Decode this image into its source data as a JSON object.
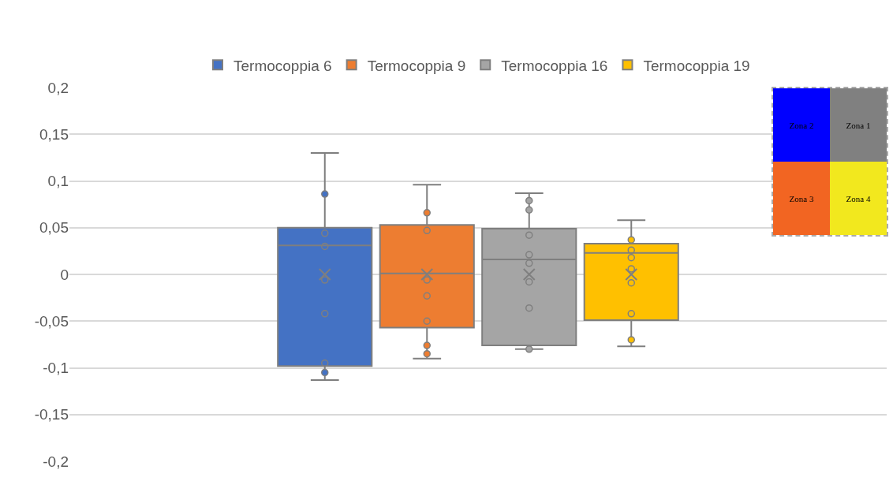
{
  "chart_data": {
    "type": "box",
    "categories": [
      null
    ],
    "series": [
      {
        "name": "Termocoppia 6",
        "color": "#4472c4",
        "boxes": [
          {
            "low": -0.113,
            "q1": -0.098,
            "median": 0.031,
            "q3": 0.05,
            "high": 0.13,
            "mean": 0,
            "outliers": [
              0.086,
              0.044,
              0.03,
              -0.006,
              -0.042,
              -0.095,
              -0.105
            ]
          }
        ]
      },
      {
        "name": "Termocoppia 9",
        "color": "#ed7d31",
        "boxes": [
          {
            "low": -0.09,
            "q1": -0.057,
            "median": 0.001,
            "q3": 0.053,
            "high": 0.096,
            "mean": 0,
            "outliers": [
              0.066,
              0.047,
              -0.006,
              -0.023,
              -0.05,
              -0.076,
              -0.085
            ]
          }
        ]
      },
      {
        "name": "Termocoppia 16",
        "color": "#a5a5a5",
        "boxes": [
          {
            "low": -0.08,
            "q1": -0.076,
            "median": 0.016,
            "q3": 0.049,
            "high": 0.087,
            "mean": 0,
            "outliers": [
              0.079,
              0.069,
              0.042,
              0.021,
              0.012,
              -0.008,
              -0.036,
              -0.08
            ]
          }
        ]
      },
      {
        "name": "Termocoppia 19",
        "color": "#ffc000",
        "boxes": [
          {
            "low": -0.077,
            "q1": -0.049,
            "median": 0.023,
            "q3": 0.033,
            "high": 0.058,
            "mean": 0,
            "outliers": [
              0.037,
              0.026,
              0.018,
              0.006,
              -0.009,
              -0.042,
              -0.07
            ]
          }
        ]
      }
    ],
    "ylim": [
      -0.2,
      0.2
    ],
    "yticks": [
      {
        "value": -0.2,
        "label": "-0,2"
      },
      {
        "value": -0.15,
        "label": "-0,15"
      },
      {
        "value": -0.1,
        "label": "-0,1"
      },
      {
        "value": -0.05,
        "label": "-0,05"
      },
      0,
      {
        "value": 0.05,
        "label": "0,05"
      },
      {
        "value": 0.1,
        "label": "0,1"
      },
      {
        "value": 0.15,
        "label": "0,15"
      },
      {
        "value": 0.2,
        "label": "0,2"
      }
    ],
    "grid": "y",
    "legend": "top",
    "tick_labels": "y",
    "annotations": [
      "Zona 2",
      "Zona 1",
      "Zona 3",
      "Zona 4"
    ]
  }
}
